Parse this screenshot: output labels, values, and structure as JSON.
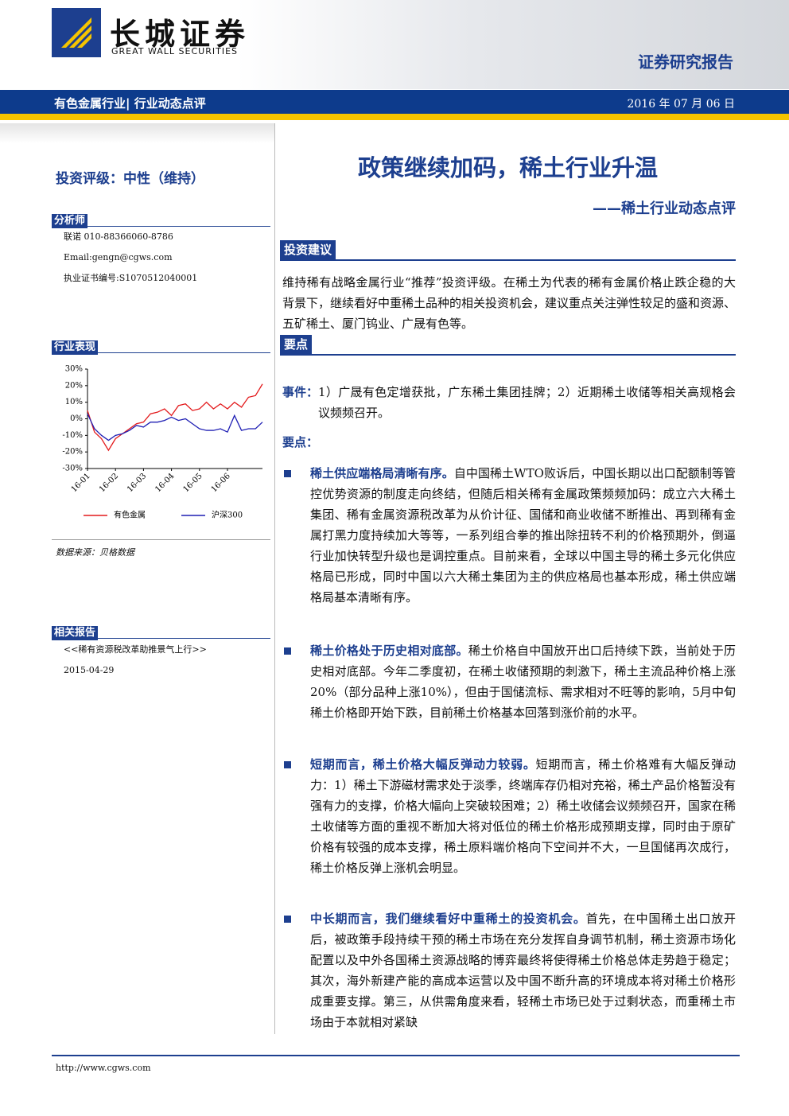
{
  "header": {
    "logo_cn": "长城证券",
    "logo_en": "GREAT WALL SECURITIES",
    "report_type": "证券研究报告"
  },
  "banner": {
    "sector": "有色金属行业| 行业动态点评",
    "date": "2016 年 07 月 06 日"
  },
  "sidebar": {
    "rating": "投资评级：中性（维持）",
    "analyst": {
      "heading": "分析师",
      "lines": [
        "联诺 010-88366060-8786",
        "Email:gengn@cgws.com",
        "执业证书编号:S1070512040001"
      ]
    },
    "performance": {
      "heading": "行业表现",
      "source": "数据来源：贝格数据"
    },
    "related": {
      "heading": "相关报告",
      "items": [
        "<<稀有资源税改革助推景气上行>>",
        "2015-04-29"
      ]
    }
  },
  "chart_data": {
    "type": "line",
    "categories": [
      "16-01",
      null,
      null,
      null,
      "16-02",
      null,
      null,
      null,
      "16-03",
      null,
      null,
      null,
      "16-04",
      null,
      null,
      null,
      "16-05",
      null,
      null,
      null,
      "16-06",
      null,
      null,
      null,
      null,
      null
    ],
    "series": [
      {
        "name": "有色金属",
        "color": "#e31a1c",
        "values": [
          5,
          -8,
          -12,
          -19,
          -12,
          -9,
          -6,
          -3,
          -2,
          3,
          4,
          6,
          2,
          8,
          9,
          5,
          6,
          10,
          6,
          9,
          6,
          10,
          7,
          13,
          14,
          21
        ]
      },
      {
        "name": "沪深300",
        "color": "#1f1fb4",
        "values": [
          3,
          -6,
          -10,
          -13,
          -10,
          -9,
          -7,
          -4,
          -5,
          -2,
          -2,
          -1,
          1,
          -1,
          0,
          -3,
          -6,
          -7,
          -7,
          -6,
          -8,
          2,
          -7,
          -6,
          -6,
          -2
        ]
      }
    ],
    "ylim": [
      -30,
      30
    ],
    "yticks": [
      {
        "value": -30,
        "label": "-30%"
      },
      {
        "value": -20,
        "label": "-20%"
      },
      {
        "value": -10,
        "label": "-10%"
      },
      {
        "value": 0,
        "label": "0%"
      },
      {
        "value": 10,
        "label": "10%"
      },
      {
        "value": 20,
        "label": "20%"
      },
      {
        "value": 30,
        "label": "30%"
      }
    ],
    "grid": false,
    "legend": "bottom"
  },
  "main": {
    "title": "政策继续加码，稀土行业升温",
    "subtitle": "——稀土行业动态点评",
    "advice": {
      "heading": "投资建议",
      "text": "维持稀有战略金属行业“推荐”投资评级。在稀土为代表的稀有金属价格止跌企稳的大背景下，继续看好中重稀土品种的相关投资机会，建议重点关注弹性较足的盛和资源、五矿稀土、厦门钨业、广晟有色等。"
    },
    "points": {
      "heading": "要点",
      "event_label": "事件：",
      "event_text": "1）广晟有色定增获批，广东稀土集团挂牌；2）近期稀土收储等相关高规格会议频频召开。",
      "points_label": "要点：",
      "bullets": [
        {
          "lead": "稀土供应端格局清晰有序。",
          "text": "自中国稀土WTO败诉后，中国长期以出口配额制等管控优势资源的制度走向终结，但随后相关稀有金属政策频频加码：成立六大稀土集团、稀有金属资源税改革为从价计征、国储和商业收储不断推出、再到稀有金属打黑力度持续加大等等，一系列组合拳的推出除扭转不利的价格预期外，倒逼行业加快转型升级也是调控重点。目前来看，全球以中国主导的稀土多元化供应格局已形成，同时中国以六大稀土集团为主的供应格局也基本形成，稀土供应端格局基本清晰有序。"
        },
        {
          "lead": "稀土价格处于历史相对底部。",
          "text": "稀土价格自中国放开出口后持续下跌，当前处于历史相对底部。今年二季度初，在稀土收储预期的刺激下，稀土主流品种价格上涨20%（部分品种上涨10%），但由于国储流标、需求相对不旺等的影响，5月中旬稀土价格即开始下跌，目前稀土价格基本回落到涨价前的水平。"
        },
        {
          "lead": "短期而言，稀土价格大幅反弹动力较弱。",
          "text": "短期而言，稀土价格难有大幅反弹动力：1）稀土下游磁材需求处于淡季，终端库存仍相对充裕，稀土产品价格暂没有强有力的支撑，价格大幅向上突破较困难；2）稀土收储会议频频召开，国家在稀土收储等方面的重视不断加大将对低位的稀土价格形成预期支撑，同时由于原矿价格有较强的成本支撑，稀土原料端价格向下空间并不大，一旦国储再次成行，稀土价格反弹上涨机会明显。"
        },
        {
          "lead": "中长期而言，我们继续看好中重稀土的投资机会。",
          "text": "首先，在中国稀土出口放开后，被政策手段持续干预的稀土市场在充分发挥自身调节机制，稀土资源市场化配置以及中外各国稀土资源战略的博弈最终将使得稀土价格总体走势趋于稳定；其次，海外新建产能的高成本运营以及中国不断升高的环境成本将对稀土价格形成重要支撑。第三，从供需角度来看，轻稀土市场已处于过剩状态，而重稀土市场由于本就相对紧缺"
        }
      ]
    }
  },
  "footer": {
    "url": "http://www.cgws.com"
  }
}
